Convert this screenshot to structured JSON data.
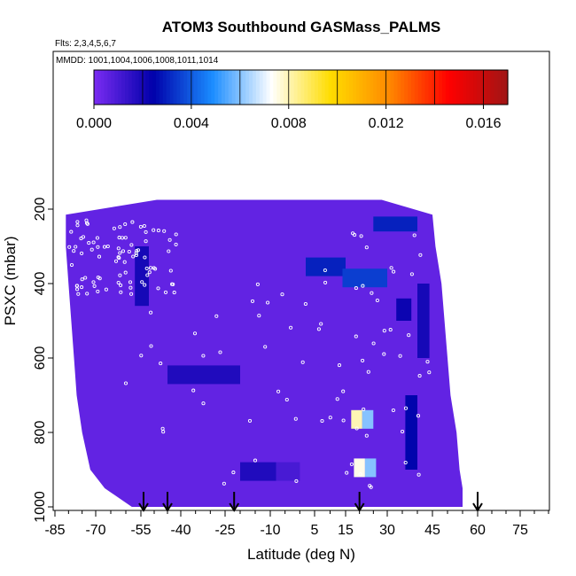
{
  "chart_data": {
    "type": "heatmap",
    "title": "ATOM3 Southbound GASMass_PALMS",
    "subtitle_flights": "Flts: 2,3,4,5,6,7",
    "subtitle_dates": "MMDD: 1001,1004,1006,1008,1011,1014",
    "xlabel": "Latitude (deg N)",
    "ylabel": "PSXC (mbar)",
    "xlim": [
      -85,
      85
    ],
    "ylim": [
      1000,
      100
    ],
    "y_reversed": true,
    "x_tick_labels": [
      "-85",
      "-70",
      "-55",
      "-40",
      "-25",
      "-10",
      "5",
      "15",
      "30",
      "45",
      "60",
      "75"
    ],
    "x_tick_values": [
      -85,
      -70,
      -55,
      -40,
      -25,
      -10,
      5,
      15,
      30,
      45,
      60,
      75
    ],
    "y_tick_labels": [
      "200",
      "400",
      "600",
      "800",
      "1000"
    ],
    "y_tick_values": [
      200,
      400,
      600,
      800,
      1000
    ],
    "colorbar": {
      "range": [
        0,
        0.017
      ],
      "tick_labels": [
        "0.000",
        "0.004",
        "0.008",
        "0.012",
        "0.016"
      ],
      "tick_values": [
        0,
        0.004,
        0.008,
        0.012,
        0.016
      ],
      "colors": [
        "#7b2cf2",
        "#0000aa",
        "#1a8cff",
        "#ffffff",
        "#ffdd00",
        "#ff8800",
        "#ff0000",
        "#a01515"
      ]
    },
    "background_value": 0.0005,
    "domain_bounds": [
      {
        "p": 175,
        "lat_min": -49,
        "lat_max": 28
      },
      {
        "p": 215,
        "lat_min": -81,
        "lat_max": 45
      },
      {
        "p": 300,
        "lat_min": -81,
        "lat_max": 46
      },
      {
        "p": 400,
        "lat_min": -80,
        "lat_max": 48
      },
      {
        "p": 500,
        "lat_min": -79,
        "lat_max": 49
      },
      {
        "p": 600,
        "lat_min": -78,
        "lat_max": 50
      },
      {
        "p": 700,
        "lat_min": -77,
        "lat_max": 51
      },
      {
        "p": 800,
        "lat_min": -75,
        "lat_max": 53
      },
      {
        "p": 900,
        "lat_min": -72,
        "lat_max": 54
      },
      {
        "p": 950,
        "lat_min": -67,
        "lat_max": 55
      },
      {
        "p": 1000,
        "lat_min": -58,
        "lat_max": 55
      }
    ],
    "features": [
      {
        "lat": [
          -57,
          -52
        ],
        "p": [
          300,
          460
        ],
        "value": 0.002
      },
      {
        "lat": [
          -45,
          -20
        ],
        "p": [
          620,
          670
        ],
        "value": 0.0018
      },
      {
        "lat": [
          -20,
          -8
        ],
        "p": [
          880,
          930
        ],
        "value": 0.0018
      },
      {
        "lat": [
          -8,
          0
        ],
        "p": [
          880,
          930
        ],
        "value": 0.001
      },
      {
        "lat": [
          2,
          15
        ],
        "p": [
          330,
          380
        ],
        "value": 0.003
      },
      {
        "lat": [
          14,
          30
        ],
        "p": [
          360,
          410
        ],
        "value": 0.0035
      },
      {
        "lat": [
          25,
          40
        ],
        "p": [
          220,
          260
        ],
        "value": 0.003
      },
      {
        "lat": [
          17,
          21
        ],
        "p": [
          740,
          790
        ],
        "value": 0.008
      },
      {
        "lat": [
          21,
          25
        ],
        "p": [
          740,
          790
        ],
        "value": 0.006
      },
      {
        "lat": [
          18,
          22
        ],
        "p": [
          870,
          920
        ],
        "value": 0.0075
      },
      {
        "lat": [
          22,
          26
        ],
        "p": [
          870,
          920
        ],
        "value": 0.006
      },
      {
        "lat": [
          36,
          40
        ],
        "p": [
          700,
          900
        ],
        "value": 0.0025
      },
      {
        "lat": [
          40,
          44
        ],
        "p": [
          400,
          600
        ],
        "value": 0.002
      },
      {
        "lat": [
          33,
          38
        ],
        "p": [
          440,
          500
        ],
        "value": 0.0022
      }
    ],
    "arrow_latitudes": [
      -54,
      -45,
      -22,
      20,
      60
    ],
    "annotations": {
      "sample_markers": "white open circles along flight tracks"
    }
  }
}
